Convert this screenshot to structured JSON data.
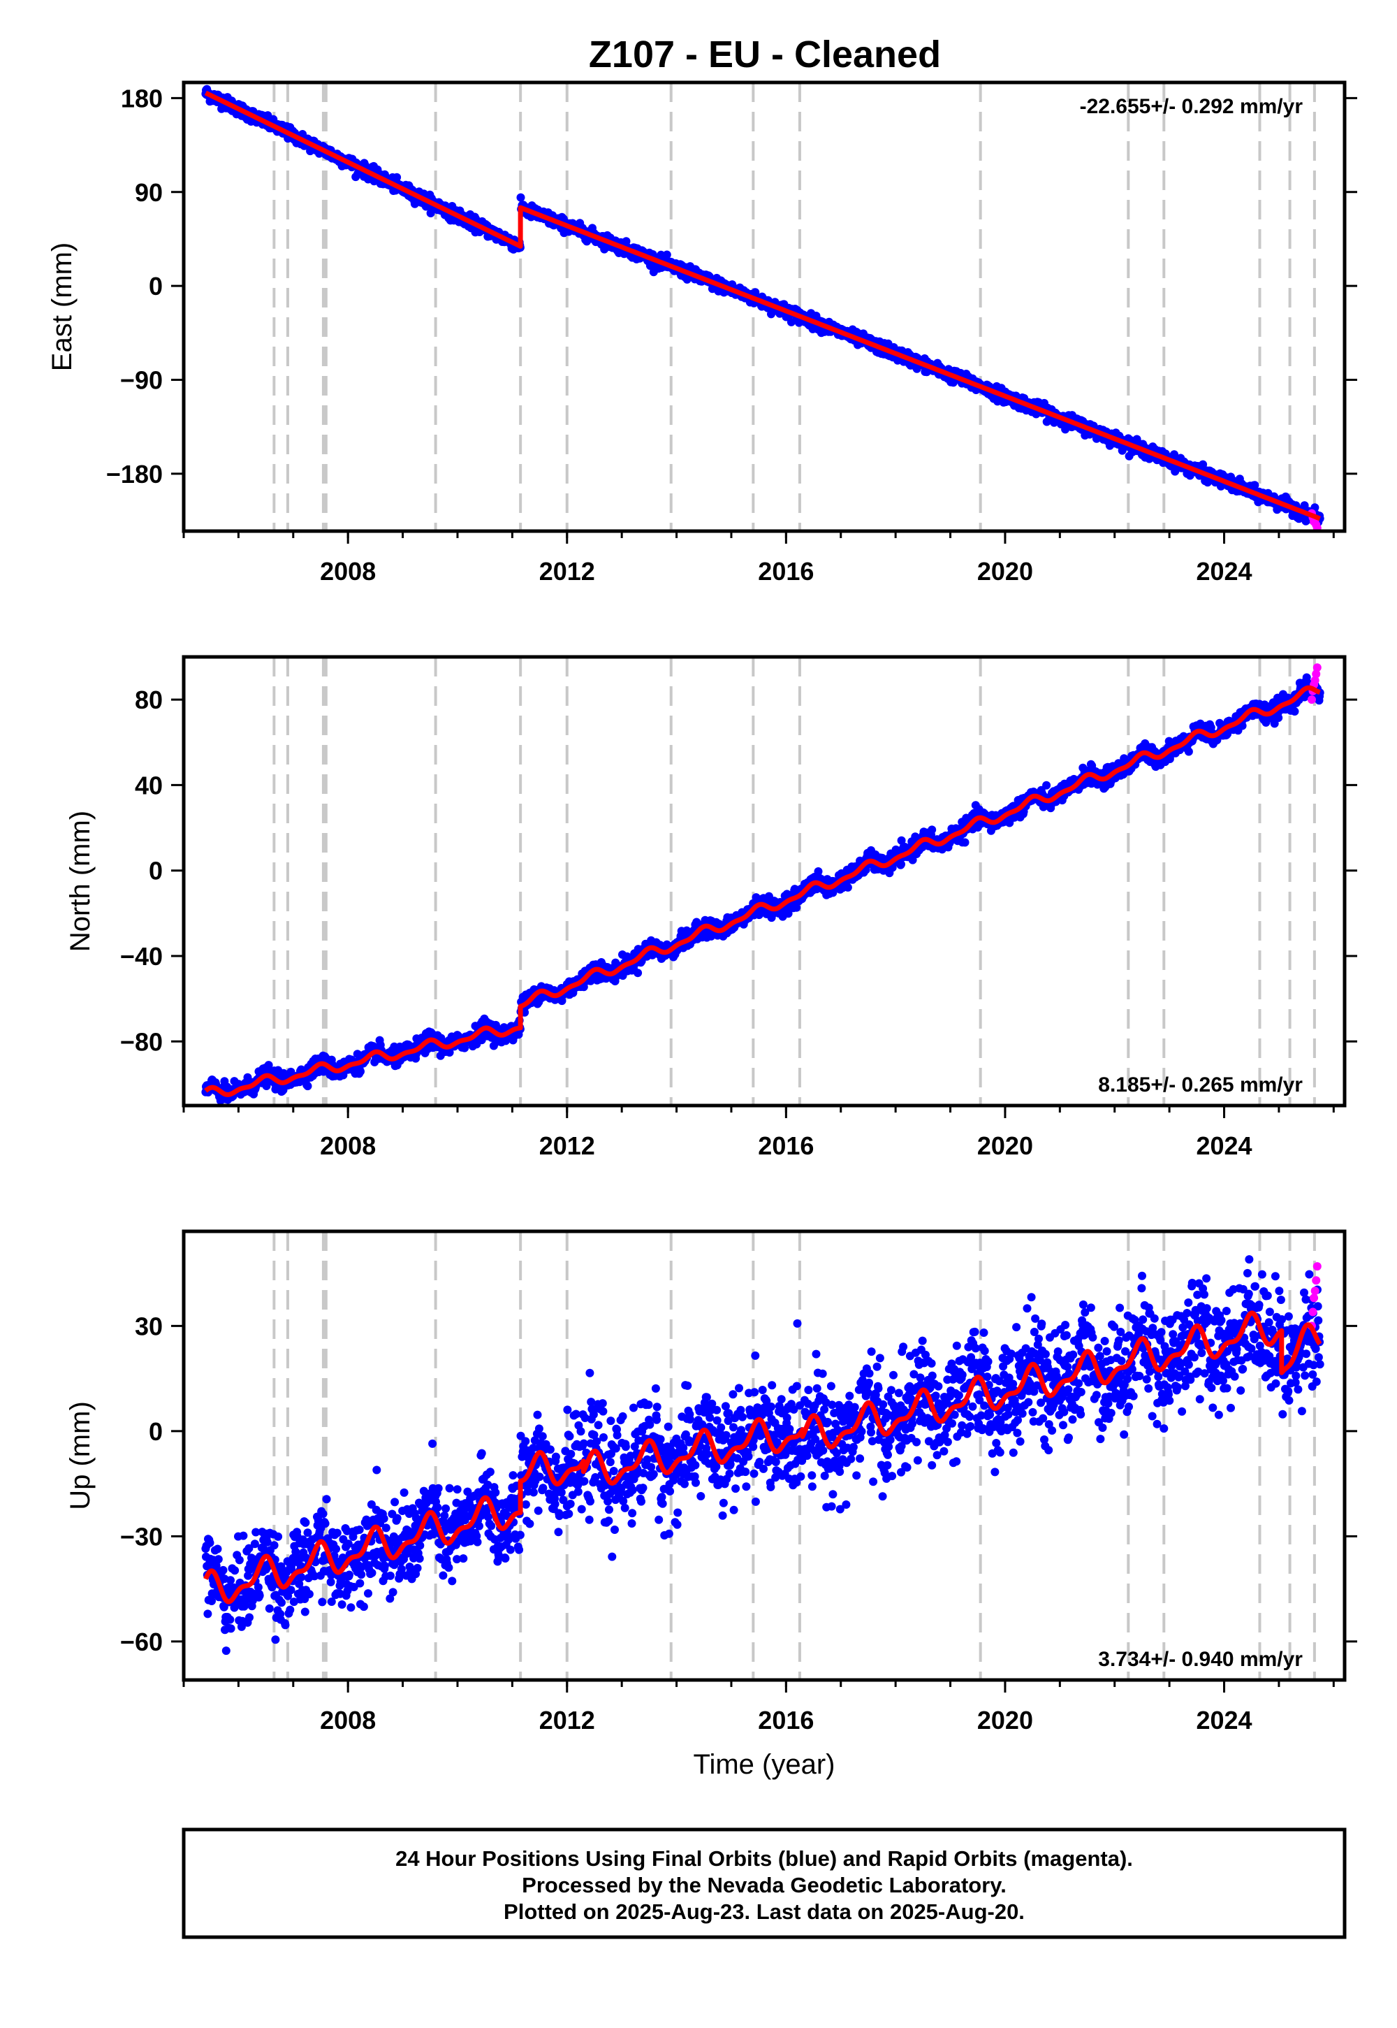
{
  "title": "Z107  - EU - Cleaned",
  "colors": {
    "final": "#0000ff",
    "rapid": "#ff00ff",
    "model": "#ff0000",
    "event_line": "#c8c8c8"
  },
  "chart_data": [
    {
      "type": "scatter",
      "component": "East",
      "ylabel": "East (mm)",
      "xlim": [
        2005.0,
        2026.2
      ],
      "ylim": [
        -235,
        195
      ],
      "yticks": [
        180,
        90,
        0,
        -90,
        -180
      ],
      "ytick_labels": [
        "180",
        "90",
        "0",
        "−90",
        "−180"
      ],
      "xticks": [
        2008,
        2012,
        2016,
        2020,
        2024
      ],
      "xtick_labels": [
        "2008",
        "2012",
        "2016",
        "2020",
        "2024"
      ],
      "rate_text": "-22.655+/- 0.292 mm/yr",
      "rate_position": "top-right",
      "model_segments": [
        {
          "x": [
            2005.4,
            2011.15
          ],
          "y": [
            185,
            38
          ]
        },
        {
          "x": [
            2011.15,
            2025.75
          ],
          "y": [
            75,
            -223
          ]
        }
      ],
      "jump_markers": [
        2011.15
      ],
      "noise_mm": 3,
      "rapid_points": {
        "x": [
          2025.6,
          2025.62,
          2025.64,
          2025.66,
          2025.68,
          2025.7
        ],
        "y": [
          -218,
          -222,
          -226,
          -224,
          -229,
          -232
        ]
      }
    },
    {
      "type": "scatter",
      "component": "North",
      "ylabel": "North (mm)",
      "xlim": [
        2005.0,
        2026.2
      ],
      "ylim": [
        -110,
        100
      ],
      "yticks": [
        80,
        40,
        0,
        -40,
        -80
      ],
      "ytick_labels": [
        "80",
        "40",
        "0",
        "−40",
        "−80"
      ],
      "xticks": [
        2008,
        2012,
        2016,
        2020,
        2024
      ],
      "xtick_labels": [
        "2008",
        "2012",
        "2016",
        "2020",
        "2024"
      ],
      "rate_text": "8.185+/- 0.265 mm/yr",
      "rate_position": "bottom-right",
      "model_segments": [
        {
          "x": [
            2005.4,
            2011.15
          ],
          "y": [
            -105,
            -73
          ]
        },
        {
          "x": [
            2011.15,
            2025.75
          ],
          "y": [
            -63,
            85
          ]
        }
      ],
      "seasonal_amp": 2,
      "noise_mm": 2,
      "rapid_points": {
        "x": [
          2025.6,
          2025.62,
          2025.64,
          2025.66,
          2025.68,
          2025.7
        ],
        "y": [
          80,
          84,
          87,
          89,
          92,
          95
        ]
      }
    },
    {
      "type": "scatter",
      "component": "Up",
      "ylabel": "Up (mm)",
      "xlabel": "Time (year)",
      "xlim": [
        2005.0,
        2026.2
      ],
      "ylim": [
        -71,
        57
      ],
      "yticks": [
        30,
        0,
        -30,
        -60
      ],
      "ytick_labels": [
        "30",
        "0",
        "−30",
        "−60"
      ],
      "xticks": [
        2008,
        2012,
        2016,
        2020,
        2024
      ],
      "xtick_labels": [
        "2008",
        "2012",
        "2016",
        "2020",
        "2024"
      ],
      "rate_text": "3.734+/- 0.940 mm/yr",
      "rate_position": "bottom-right",
      "model_segments": [
        {
          "x": [
            2005.4,
            2011.15
          ],
          "y": [
            -46,
            -22
          ]
        },
        {
          "x": [
            2011.15,
            2012.3
          ],
          "y": [
            -13,
            -9
          ]
        },
        {
          "x": [
            2012.3,
            2016.3
          ],
          "y": [
            -12,
            0
          ]
        },
        {
          "x": [
            2016.3,
            2025.05
          ],
          "y": [
            -2,
            30
          ]
        },
        {
          "x": [
            2025.05,
            2025.75
          ],
          "y": [
            18,
            28
          ]
        }
      ],
      "seasonal_amp": 4,
      "noise_mm": 6,
      "rapid_points": {
        "x": [
          2025.6,
          2025.62,
          2025.64,
          2025.66,
          2025.68,
          2025.7
        ],
        "y": [
          30,
          34,
          38,
          40,
          43,
          47
        ]
      }
    }
  ],
  "event_lines": [
    2006.65,
    2006.9,
    2007.55,
    2007.6,
    2009.6,
    2011.15,
    2012.0,
    2013.9,
    2015.4,
    2016.25,
    2019.55,
    2022.25,
    2022.9,
    2024.65,
    2025.2,
    2025.65
  ],
  "footer": {
    "line1": "24 Hour Positions Using Final Orbits (blue) and Rapid Orbits (magenta).",
    "line2": "Processed by the Nevada Geodetic Laboratory.",
    "line3": "Plotted on 2025-Aug-23. Last data on 2025-Aug-20."
  }
}
